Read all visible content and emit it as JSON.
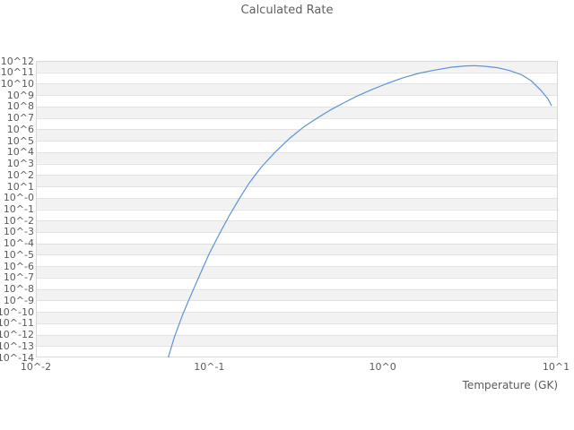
{
  "chart_data": {
    "type": "line",
    "title": "Calculated Rate",
    "xlabel": "Temperature (GK)",
    "ylabel": "",
    "x_scale": "log10",
    "y_scale": "log10",
    "xlim_log10": [
      -2,
      1.01
    ],
    "ylim_log10": [
      -14,
      12
    ],
    "grid": "horizontal-bands",
    "legend": "none",
    "x_ticks": {
      "log10_positions": [
        -2,
        -1,
        0,
        1
      ],
      "labels": [
        "10^-2",
        "10^-1",
        "10^0",
        "10^1"
      ]
    },
    "y_ticks": {
      "log10_positions": [
        12,
        11,
        10,
        9,
        8,
        7,
        6,
        5,
        4,
        3,
        2,
        1,
        0,
        -1,
        -2,
        -3,
        -4,
        -5,
        -6,
        -7,
        -8,
        -9,
        -10,
        -11,
        -12,
        -13,
        -14
      ],
      "labels": [
        "10^12",
        "10^11",
        "10^10",
        "10^9",
        "10^8",
        "10^7",
        "10^6",
        "10^5",
        "10^4",
        "10^3",
        "10^2",
        "10^1",
        "10^-0",
        "10^-1",
        "10^-2",
        "10^-3",
        "10^-4",
        "10^-5",
        "10^-6",
        "10^-7",
        "10^-8",
        "10^-9",
        "10^-10",
        "10^-11",
        "10^-12",
        "10^-13",
        "10^-14"
      ]
    },
    "series": [
      {
        "name": "calculated-rate",
        "color": "#5b93d8",
        "points_T_GK_vs_log10_rate": [
          [
            0.058,
            -14.0
          ],
          [
            0.063,
            -12.2
          ],
          [
            0.07,
            -10.3
          ],
          [
            0.078,
            -8.6
          ],
          [
            0.088,
            -6.8
          ],
          [
            0.1,
            -4.9
          ],
          [
            0.115,
            -3.1
          ],
          [
            0.13,
            -1.6
          ],
          [
            0.15,
            0.0
          ],
          [
            0.17,
            1.3
          ],
          [
            0.2,
            2.7
          ],
          [
            0.24,
            4.0
          ],
          [
            0.29,
            5.2
          ],
          [
            0.35,
            6.2
          ],
          [
            0.42,
            7.0
          ],
          [
            0.5,
            7.7
          ],
          [
            0.6,
            8.35
          ],
          [
            0.72,
            8.95
          ],
          [
            0.87,
            9.5
          ],
          [
            1.05,
            10.0
          ],
          [
            1.3,
            10.5
          ],
          [
            1.6,
            10.9
          ],
          [
            2.0,
            11.2
          ],
          [
            2.5,
            11.45
          ],
          [
            3.0,
            11.56
          ],
          [
            3.4,
            11.58
          ],
          [
            3.9,
            11.53
          ],
          [
            4.6,
            11.4
          ],
          [
            5.4,
            11.15
          ],
          [
            6.3,
            10.8
          ],
          [
            7.2,
            10.25
          ],
          [
            8.2,
            9.4
          ],
          [
            9.0,
            8.65
          ],
          [
            9.4,
            8.1
          ]
        ]
      }
    ],
    "colors": {
      "band_fill": "#f2f2f2",
      "gridline": "#e2e2e2",
      "border": "#d9d9d9",
      "text": "#5a5a5a",
      "background": "#ffffff"
    }
  }
}
